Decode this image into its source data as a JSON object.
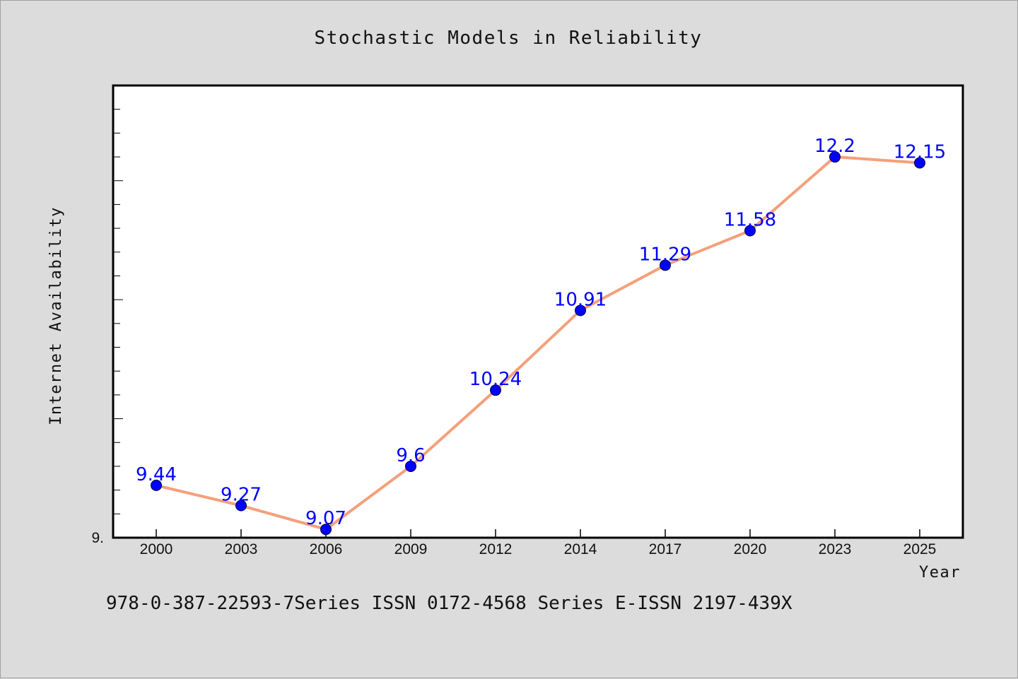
{
  "chart_data": {
    "type": "line",
    "title": "Stochastic Models in Reliability",
    "xlabel": "Year",
    "ylabel": "Internet Availability",
    "categories": [
      "2000",
      "2003",
      "2006",
      "2009",
      "2012",
      "2014",
      "2017",
      "2020",
      "2023",
      "2025"
    ],
    "series": [
      {
        "values": [
          9.44,
          9.27,
          9.07,
          9.6,
          10.24,
          10.91,
          11.29,
          11.58,
          12.2,
          12.15
        ],
        "labels": [
          "9.44",
          "9.27",
          "9.07",
          "9.6",
          "10.24",
          "10.91",
          "11.29",
          "11.58",
          "12.2",
          "12.15"
        ],
        "line_color": "#f4a07a",
        "marker_color": "#0000ff"
      }
    ],
    "ylim": [
      9.0,
      12.8
    ],
    "y_tick_labels": [
      "9."
    ],
    "grid": false,
    "legend": "none"
  },
  "footer_text": "978-0-387-22593-7Series ISSN 0172-4568 Series E-ISSN 2197-439X",
  "colors": {
    "background": "#dcdcdc",
    "plot_background": "#ffffff",
    "line": "#f4a07a",
    "marker": "#0000ff",
    "data_label": "#0000ff"
  }
}
